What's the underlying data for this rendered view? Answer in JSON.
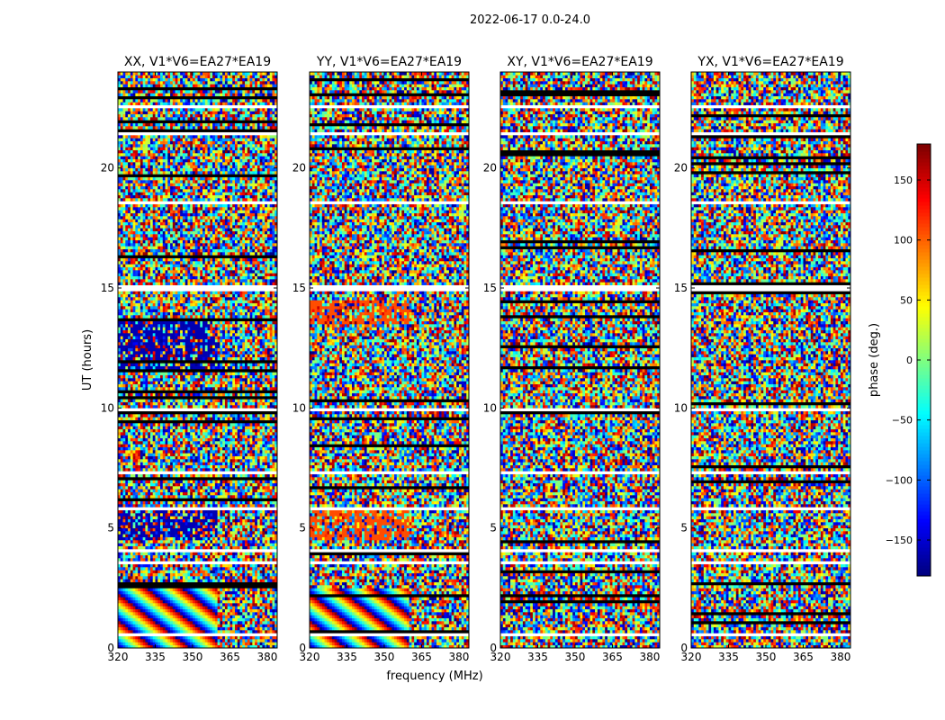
{
  "figure": {
    "suptitle": "2022-06-17 0.0-24.0"
  },
  "chart_data": {
    "type": "heatmap",
    "xlabel": "frequency (MHz)",
    "ylabel": "UT (hours)",
    "xlim": [
      320,
      384
    ],
    "ylim": [
      0,
      24
    ],
    "x_ticks": [
      320,
      335,
      350,
      365,
      380
    ],
    "y_ticks": [
      0,
      5,
      10,
      15,
      20
    ],
    "panels": [
      {
        "title": "XX, V1*V6=EA27*EA19",
        "polarization": "XX"
      },
      {
        "title": "YY, V1*V6=EA27*EA19",
        "polarization": "YY"
      },
      {
        "title": "XY, V1*V6=EA27*EA19",
        "polarization": "XY"
      },
      {
        "title": "YX, V1*V6=EA27*EA19",
        "polarization": "YX"
      }
    ],
    "colorbar": {
      "label": "phase (deg.)",
      "range": [
        -180,
        180
      ],
      "ticks": [
        150,
        100,
        50,
        0,
        -50,
        -100,
        -150
      ],
      "tick_labels": [
        "150",
        "100",
        "50",
        "0",
        "−50",
        "−100",
        "−150"
      ],
      "colormap": "jet",
      "colors": [
        "#00007f",
        "#0000ff",
        "#007fff",
        "#00ffff",
        "#7fff7f",
        "#ffff00",
        "#ff7f00",
        "#ff0000",
        "#7f0000"
      ]
    },
    "blank_rows_ut": [
      0.55,
      3.55,
      4.1,
      5.8,
      7.3,
      9.95,
      15.0,
      18.6,
      21.45,
      22.55
    ]
  }
}
